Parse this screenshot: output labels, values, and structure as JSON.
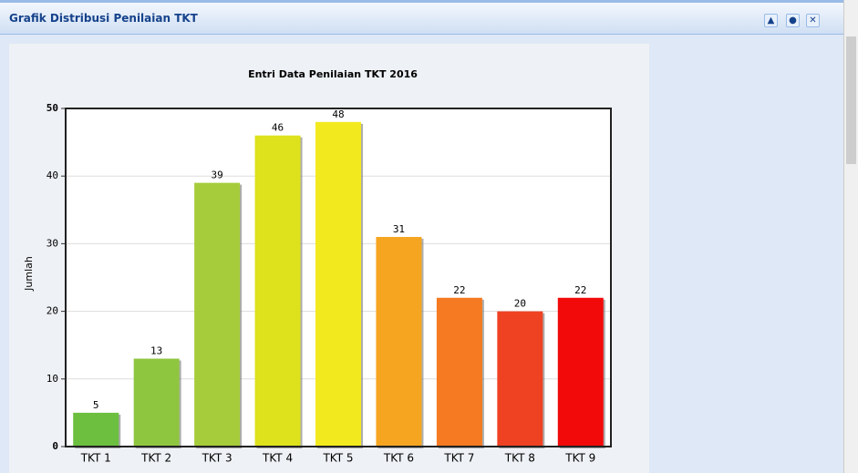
{
  "panel": {
    "title": "Grafik Distribusi Penilaian TKT"
  },
  "chart_data": {
    "type": "bar",
    "title": "Entri Data Penilaian TKT 2016",
    "y_label": "Jumlah",
    "categories": [
      "TKT 1",
      "TKT 2",
      "TKT 3",
      "TKT 4",
      "TKT 5",
      "TKT 6",
      "TKT 7",
      "TKT 8",
      "TKT 9"
    ],
    "values": [
      5,
      13,
      39,
      46,
      48,
      31,
      22,
      20,
      22
    ],
    "colors": [
      "#6cbf3f",
      "#8fc63f",
      "#a6cc3b",
      "#dde21c",
      "#f2ea1e",
      "#f6a521",
      "#f57a21",
      "#ef4223",
      "#f20a0a"
    ],
    "ylim": [
      0,
      50
    ],
    "yticks": [
      0,
      10,
      20,
      30,
      40,
      50
    ],
    "grid": true
  }
}
